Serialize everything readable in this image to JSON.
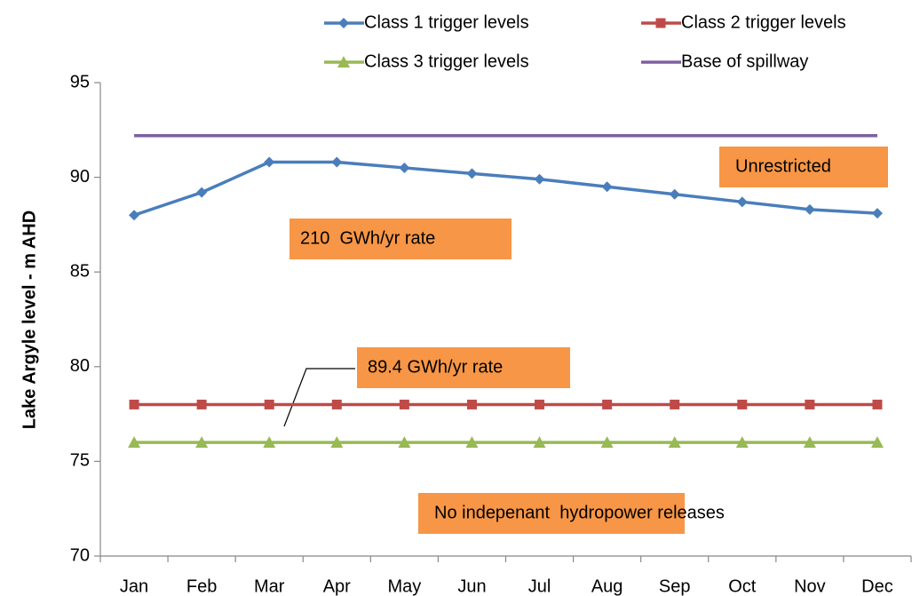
{
  "chart_data": {
    "type": "line",
    "y_label": "Lake Argyle level - m AHD",
    "categories": [
      "Jan",
      "Feb",
      "Mar",
      "Apr",
      "May",
      "Jun",
      "Jul",
      "Aug",
      "Sep",
      "Oct",
      "Nov",
      "Dec"
    ],
    "series": [
      {
        "name": "Class 1 trigger levels",
        "color": "#4a7ebb",
        "marker": "diamond",
        "values": [
          88.0,
          89.2,
          90.8,
          90.8,
          90.5,
          90.2,
          89.9,
          89.5,
          89.1,
          88.7,
          88.3,
          88.1
        ]
      },
      {
        "name": "Class 2 trigger levels",
        "color": "#be4b48",
        "marker": "square",
        "values": [
          78,
          78,
          78,
          78,
          78,
          78,
          78,
          78,
          78,
          78,
          78,
          78
        ]
      },
      {
        "name": "Class 3 trigger levels",
        "color": "#98b954",
        "marker": "triangle",
        "values": [
          76,
          76,
          76,
          76,
          76,
          76,
          76,
          76,
          76,
          76,
          76,
          76
        ]
      },
      {
        "name": "Base of spillway",
        "color": "#7d60a0",
        "values": [
          92.2,
          92.2,
          92.2,
          92.2,
          92.2,
          92.2,
          92.2,
          92.2,
          92.2,
          92.2,
          92.2,
          92.2
        ]
      }
    ],
    "ylim": [
      70,
      95
    ],
    "yticks": [
      70,
      75,
      80,
      85,
      90,
      95
    ],
    "grid": false,
    "annotations": [
      "Unrestricted",
      "210  GWh/yr rate",
      "89.4 GWh/yr rate",
      "No indepenant  hydropower releases"
    ],
    "annotation_color": "#f79646"
  }
}
